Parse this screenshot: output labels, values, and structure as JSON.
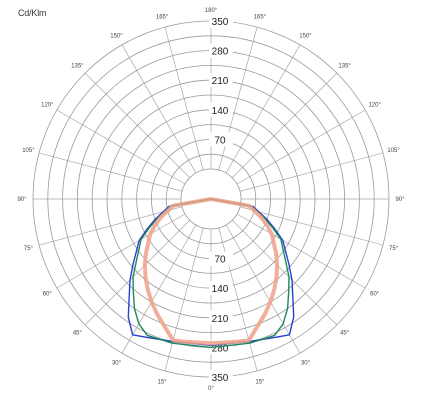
{
  "chart_data": {
    "type": "polar",
    "unit_label": "Cd/Klm",
    "radial_ticks": [
      "70",
      "140",
      "210",
      "280",
      "350"
    ],
    "r_max": 350,
    "angle_ticks_right": [
      "0°",
      "15°",
      "30°",
      "45°",
      "60°",
      "75°",
      "90°",
      "105°",
      "120°",
      "135°",
      "150°",
      "165°",
      "180°"
    ],
    "angle_ticks_left": [
      "15°",
      "30°",
      "45°",
      "60°",
      "75°",
      "90°",
      "105°",
      "120°",
      "135°",
      "150°",
      "165°"
    ],
    "grid": true,
    "series": [
      {
        "color": "#2a3fd0",
        "angles": [
          0,
          15,
          25,
          30,
          35,
          40,
          45,
          50,
          60,
          65,
          70,
          80,
          90
        ],
        "values": [
          275,
          278,
          290,
          300,
          270,
          230,
          200,
          170,
          125,
          95,
          70,
          30,
          0
        ]
      },
      {
        "color": "#1b8a5a",
        "angles": [
          0,
          15,
          25,
          30,
          35,
          40,
          45,
          50,
          60,
          65,
          70,
          80,
          90
        ],
        "values": [
          280,
          282,
          285,
          270,
          245,
          215,
          190,
          160,
          120,
          90,
          65,
          25,
          0
        ]
      },
      {
        "color": "#f0a088",
        "angles": [
          0,
          10,
          15,
          20,
          25,
          30,
          35,
          40,
          45,
          50,
          60,
          65,
          70,
          80,
          90
        ],
        "values": [
          270,
          272,
          275,
          250,
          230,
          210,
          190,
          170,
          150,
          130,
          95,
          75,
          55,
          20,
          0
        ]
      }
    ]
  }
}
